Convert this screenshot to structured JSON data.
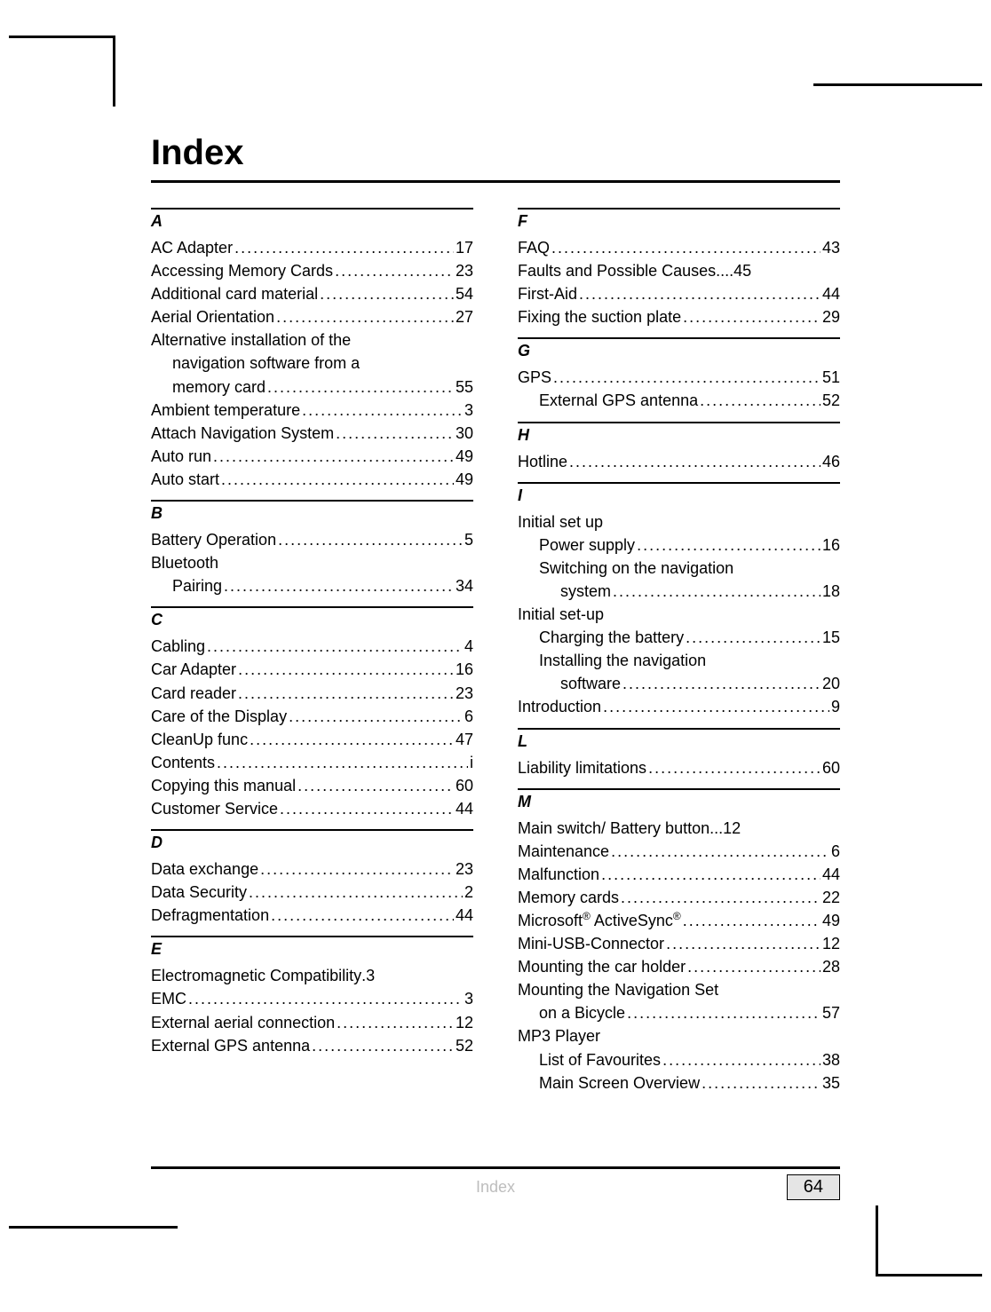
{
  "page": {
    "title": "Index",
    "footer_label": "Index",
    "footer_page": "64"
  },
  "left_sections": [
    {
      "letter": "A",
      "entries": [
        {
          "text": "AC Adapter",
          "page": "17",
          "indent": 0
        },
        {
          "text": "Accessing Memory Cards",
          "page": "23",
          "indent": 0
        },
        {
          "text": "Additional card material",
          "page": "54",
          "indent": 0
        },
        {
          "text": "Aerial Orientation",
          "page": "27",
          "indent": 0
        },
        {
          "text": "Alternative installation of the",
          "indent": 0,
          "nopage": true
        },
        {
          "text": "navigation software from a",
          "indent": 1,
          "nopage": true
        },
        {
          "text": "memory card",
          "page": "55",
          "indent": 1
        },
        {
          "text": "Ambient temperature",
          "page": "3",
          "indent": 0,
          "wide": true
        },
        {
          "text": "Attach Navigation System",
          "page": "30",
          "indent": 0
        },
        {
          "text": "Auto run",
          "page": "49",
          "indent": 0
        },
        {
          "text": "Auto start",
          "page": "49",
          "indent": 0
        }
      ]
    },
    {
      "letter": "B",
      "entries": [
        {
          "text": "Battery Operation",
          "page": "5",
          "indent": 0,
          "wide": true
        },
        {
          "text": "Bluetooth",
          "indent": 0,
          "nopage": true
        },
        {
          "text": "Pairing",
          "page": "34",
          "indent": 1
        }
      ]
    },
    {
      "letter": "C",
      "entries": [
        {
          "text": "Cabling",
          "page": "4",
          "indent": 0,
          "wide": true
        },
        {
          "text": "Car Adapter",
          "page": "16",
          "indent": 0
        },
        {
          "text": "Card reader",
          "page": "23",
          "indent": 0
        },
        {
          "text": "Care of the Display",
          "page": "6",
          "indent": 0,
          "wide": true
        },
        {
          "text": "CleanUp func",
          "page": "47",
          "indent": 0
        },
        {
          "text": "Contents",
          "page": "i",
          "indent": 0,
          "wide": true
        },
        {
          "text": "Copying this manual",
          "page": "60",
          "indent": 0
        },
        {
          "text": "Customer Service",
          "page": "44",
          "indent": 0
        }
      ]
    },
    {
      "letter": "D",
      "entries": [
        {
          "text": "Data exchange",
          "page": "23",
          "indent": 0
        },
        {
          "text": "Data Security",
          "page": "2",
          "indent": 0,
          "wide": true
        },
        {
          "text": "Defragmentation",
          "page": "44",
          "indent": 0
        }
      ]
    },
    {
      "letter": "E",
      "entries": [
        {
          "text": "Electromagnetic Compatibility",
          "page": "3",
          "indent": 0,
          "sep": " . "
        },
        {
          "text": "EMC",
          "page": "3",
          "indent": 0,
          "wide": true
        },
        {
          "text": "External aerial connection",
          "page": "12",
          "indent": 0
        },
        {
          "text": "External GPS antenna",
          "page": "52",
          "indent": 0
        }
      ]
    }
  ],
  "right_sections": [
    {
      "letter": "F",
      "entries": [
        {
          "text": "FAQ",
          "page": "43",
          "indent": 0,
          "wide": true
        },
        {
          "text": "Faults and Possible Causes",
          "page": "45",
          "indent": 0,
          "sep": " .... "
        },
        {
          "text": "First-Aid",
          "page": "44",
          "indent": 0,
          "wide": true
        },
        {
          "text": "Fixing the suction plate",
          "page": "29",
          "indent": 0,
          "wide": true
        }
      ]
    },
    {
      "letter": "G",
      "entries": [
        {
          "text": "GPS",
          "page": "51",
          "indent": 0,
          "wide": true
        },
        {
          "text": "External GPS antenna",
          "page": "52",
          "indent": 1,
          "wide": true
        }
      ]
    },
    {
      "letter": "H",
      "entries": [
        {
          "text": "Hotline",
          "page": "46",
          "indent": 0,
          "wide": true
        }
      ]
    },
    {
      "letter": "I",
      "entries": [
        {
          "text": "Initial set up",
          "indent": 0,
          "nopage": true
        },
        {
          "text": "Power supply",
          "page": "16",
          "indent": 1,
          "wide": true
        },
        {
          "text": "Switching on the navigation",
          "indent": 1,
          "nopage": true
        },
        {
          "text": "system",
          "page": "18",
          "indent": 2,
          "wide": true
        },
        {
          "text": "Initial set-up",
          "indent": 0,
          "nopage": true
        },
        {
          "text": "Charging the battery",
          "page": "15",
          "indent": 1,
          "wide": true
        },
        {
          "text": "Installing the navigation",
          "indent": 1,
          "nopage": true
        },
        {
          "text": "software",
          "page": "20",
          "indent": 2,
          "wide": true
        },
        {
          "text": "Introduction",
          "page": "9",
          "indent": 0
        }
      ]
    },
    {
      "letter": "L",
      "entries": [
        {
          "text": "Liability limitations",
          "page": "60",
          "indent": 0,
          "wide": true
        }
      ]
    },
    {
      "letter": "M",
      "entries": [
        {
          "text": "Main switch/ Battery button",
          "page": "12",
          "indent": 0,
          "sep": "... "
        },
        {
          "text": "Maintenance",
          "page": "6",
          "indent": 0
        },
        {
          "text": "Malfunction",
          "page": "44",
          "indent": 0,
          "wide": true
        },
        {
          "text": "Memory cards",
          "page": "22",
          "indent": 0,
          "wide": true
        },
        {
          "text": "Microsoft",
          "reg1": "®",
          "text2": " ActiveSync",
          "reg2": "®",
          "page": "49",
          "indent": 0,
          "wide": true
        },
        {
          "text": "Mini-USB-Connector",
          "page": "12",
          "indent": 0,
          "wide": true
        },
        {
          "text": "Mounting the car holder",
          "page": "28",
          "indent": 0,
          "wide": true
        },
        {
          "text": "Mounting the Navigation Set",
          "indent": 0,
          "nopage": true
        },
        {
          "text": "on a Bicycle",
          "page": "57",
          "indent": 1,
          "wide": true
        },
        {
          "text": "MP3 Player",
          "indent": 0,
          "nopage": true
        },
        {
          "text": "List of Favourites",
          "page": "38",
          "indent": 1,
          "wide": true
        },
        {
          "text": "Main Screen Overview",
          "page": "35",
          "indent": 1,
          "wide": true
        }
      ]
    }
  ]
}
